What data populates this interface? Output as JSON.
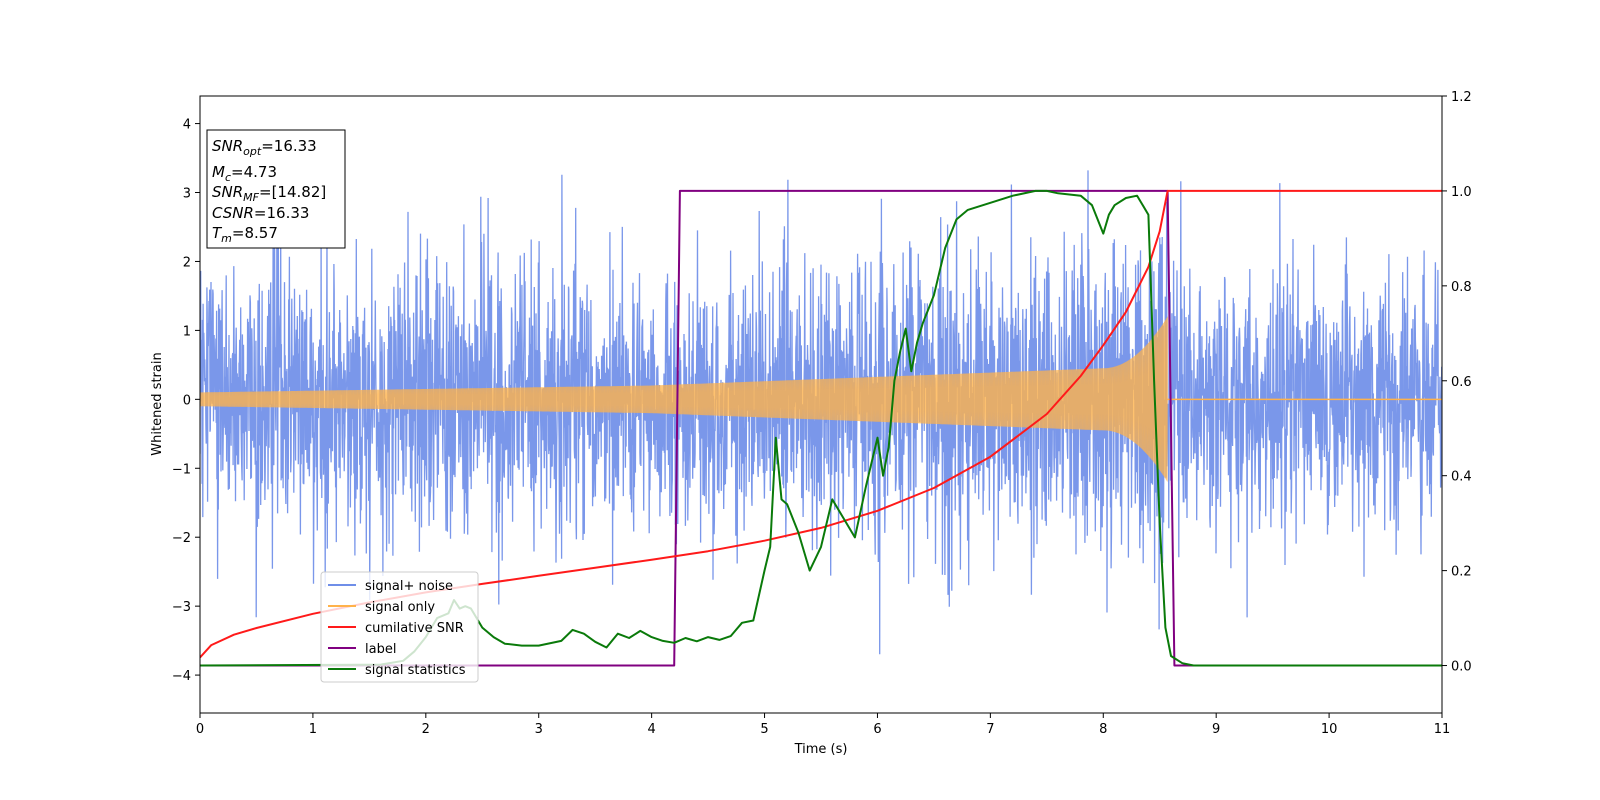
{
  "chart_data": {
    "type": "line",
    "xlabel": "Time (s)",
    "ylabel": "Whitened strain",
    "xlim": [
      0,
      11
    ],
    "ylim_left": [
      -4.55,
      4.4
    ],
    "ylim_right": [
      -0.1,
      1.2
    ],
    "x_ticks": [
      0,
      1,
      2,
      3,
      4,
      5,
      6,
      7,
      8,
      9,
      10,
      11
    ],
    "y_ticks_left": [
      -4,
      -3,
      -2,
      -1,
      0,
      1,
      2,
      3,
      4
    ],
    "y_ticks_right": [
      0.0,
      0.2,
      0.4,
      0.6,
      0.8,
      1.0,
      1.2
    ],
    "grid": false,
    "legend_position": "lower-left",
    "colors": {
      "signal_noise": "#6f8ee8",
      "signal_only": "#ffb24a",
      "cumulative_snr": "#ff1a1a",
      "label": "#800080",
      "signal_statistics": "#0a7a0a"
    },
    "info_box": {
      "snr_opt": {
        "base": "SNR",
        "sub": "opt",
        "value": "=16.33"
      },
      "mc": {
        "base": "M",
        "sub": "c",
        "value": "=4.73"
      },
      "snr_mf": {
        "base": "SNR",
        "sub": "MF",
        "value": "=[14.82]"
      },
      "csnr": {
        "base": "CSNR",
        "value": "=16.33"
      },
      "tm": {
        "base": "T",
        "sub": "m",
        "value": "=8.57"
      }
    },
    "series": [
      {
        "name": "signal+ noise",
        "axis": "left",
        "kind": "noise",
        "x_range": [
          0,
          11
        ],
        "typical_extent": 2.0,
        "max_abs": 4.1
      },
      {
        "name": "signal only",
        "axis": "left",
        "kind": "chirp",
        "merger_time": 8.57,
        "amplitude_at_start": 0.1,
        "amplitude_at_4s": 0.2,
        "amplitude_at_8s": 0.45,
        "peak_amplitude": 1.2
      },
      {
        "name": "cumilative SNR",
        "axis": "right",
        "x": [
          0,
          0.1,
          0.3,
          0.5,
          1,
          1.5,
          2,
          2.5,
          3,
          3.5,
          4,
          4.5,
          5,
          5.5,
          6,
          6.5,
          7,
          7.5,
          7.8,
          8,
          8.2,
          8.4,
          8.5,
          8.57,
          11
        ],
        "y": [
          0.017,
          0.043,
          0.065,
          0.079,
          0.109,
          0.133,
          0.154,
          0.172,
          0.189,
          0.206,
          0.223,
          0.241,
          0.263,
          0.29,
          0.326,
          0.374,
          0.44,
          0.53,
          0.61,
          0.675,
          0.745,
          0.84,
          0.915,
          1.0,
          1.0
        ]
      },
      {
        "name": "label",
        "axis": "right",
        "x": [
          0,
          4.2,
          4.25,
          8.57,
          8.63,
          11
        ],
        "y": [
          0,
          0,
          1,
          1,
          0,
          0
        ]
      },
      {
        "name": "signal statistics",
        "axis": "right",
        "x": [
          0,
          1.6,
          1.8,
          1.9,
          2.0,
          2.1,
          2.2,
          2.25,
          2.3,
          2.35,
          2.4,
          2.5,
          2.6,
          2.7,
          2.85,
          3.0,
          3.2,
          3.3,
          3.4,
          3.5,
          3.6,
          3.7,
          3.8,
          3.9,
          4.0,
          4.1,
          4.2,
          4.3,
          4.4,
          4.5,
          4.6,
          4.7,
          4.8,
          4.9,
          5.0,
          5.05,
          5.1,
          5.15,
          5.2,
          5.3,
          5.4,
          5.5,
          5.6,
          5.7,
          5.8,
          5.9,
          6.0,
          6.05,
          6.1,
          6.15,
          6.2,
          6.25,
          6.3,
          6.35,
          6.4,
          6.5,
          6.6,
          6.7,
          6.8,
          7.0,
          7.2,
          7.4,
          7.5,
          7.6,
          7.8,
          7.9,
          8.0,
          8.05,
          8.1,
          8.2,
          8.3,
          8.4,
          8.45,
          8.5,
          8.55,
          8.6,
          8.7,
          8.8,
          9.0,
          11
        ],
        "y": [
          0.0,
          0.002,
          0.01,
          0.03,
          0.06,
          0.1,
          0.11,
          0.138,
          0.12,
          0.125,
          0.12,
          0.08,
          0.06,
          0.046,
          0.042,
          0.042,
          0.052,
          0.075,
          0.067,
          0.05,
          0.038,
          0.067,
          0.058,
          0.073,
          0.06,
          0.052,
          0.048,
          0.058,
          0.051,
          0.06,
          0.054,
          0.062,
          0.09,
          0.095,
          0.2,
          0.25,
          0.48,
          0.35,
          0.34,
          0.28,
          0.2,
          0.25,
          0.35,
          0.31,
          0.27,
          0.38,
          0.48,
          0.4,
          0.46,
          0.6,
          0.66,
          0.71,
          0.62,
          0.68,
          0.72,
          0.78,
          0.88,
          0.94,
          0.96,
          0.975,
          0.99,
          1.0,
          1.0,
          0.995,
          0.99,
          0.97,
          0.91,
          0.95,
          0.97,
          0.985,
          0.99,
          0.95,
          0.6,
          0.3,
          0.08,
          0.02,
          0.005,
          0.0,
          0.0,
          0.0
        ]
      }
    ]
  }
}
